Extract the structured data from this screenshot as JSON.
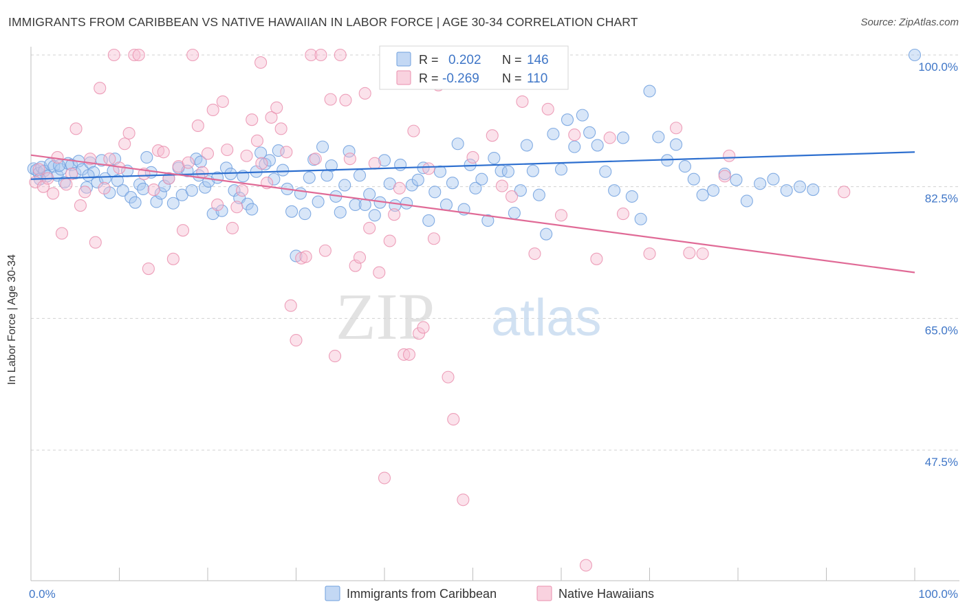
{
  "title": "IMMIGRANTS FROM CARIBBEAN VS NATIVE HAWAIIAN IN LABOR FORCE | AGE 30-34 CORRELATION CHART",
  "source": "Source: ZipAtlas.com",
  "colors": {
    "blue_fill": "#a9c8f0",
    "blue_stroke": "#6f9fde",
    "blue_line": "#2d6fcf",
    "pink_fill": "#f6bfd2",
    "pink_stroke": "#ea8fae",
    "pink_line": "#e06a96",
    "axis_text": "#3f76c7",
    "grid": "#d0d0d0"
  },
  "legend_stats": [
    {
      "r_label": "R =",
      "r_value": "0.202",
      "n_label": "N =",
      "n_value": "146"
    },
    {
      "r_label": "R =",
      "r_value": "-0.269",
      "n_label": "N =",
      "n_value": "110"
    }
  ],
  "watermark": {
    "zip": "ZIP",
    "atlas": "atlas"
  },
  "chart_data": {
    "type": "scatter",
    "title": "IMMIGRANTS FROM CARIBBEAN VS NATIVE HAWAIIAN IN LABOR FORCE | AGE 30-34 CORRELATION CHART",
    "xlabel": "",
    "ylabel": "In Labor Force | Age 30-34",
    "xlim": [
      0,
      100
    ],
    "ylim": [
      30,
      102
    ],
    "x_tick_labels": [
      "0.0%",
      "100.0%"
    ],
    "y_ticks": [
      47.5,
      65.0,
      82.5,
      100.0
    ],
    "y_tick_labels": [
      "47.5%",
      "65.0%",
      "82.5%",
      "100.0%"
    ],
    "grid": true,
    "legend_position": "bottom-center",
    "series": [
      {
        "name": "Immigrants from Caribbean",
        "color": "#a9c8f0",
        "R": 0.202,
        "N": 146,
        "trend": {
          "x": [
            0,
            100
          ],
          "y": [
            83.5,
            87.1
          ]
        },
        "points": [
          [
            0.3,
            84.9
          ],
          [
            0.6,
            84.7
          ],
          [
            0.9,
            84.3
          ],
          [
            1.2,
            85.1
          ],
          [
            1.5,
            84.6
          ],
          [
            1.8,
            83.9
          ],
          [
            2.2,
            85.5
          ],
          [
            2.6,
            85.2
          ],
          [
            3.0,
            84.0
          ],
          [
            3.4,
            84.8
          ],
          [
            3.8,
            83.1
          ],
          [
            4.2,
            85.6
          ],
          [
            4.6,
            85.4
          ],
          [
            5.0,
            84.3
          ],
          [
            5.4,
            85.9
          ],
          [
            5.8,
            84.8
          ],
          [
            6.3,
            82.4
          ],
          [
            6.7,
            85.7
          ],
          [
            7.1,
            84.4
          ],
          [
            7.5,
            83.1
          ],
          [
            8.0,
            86.0
          ],
          [
            8.4,
            83.6
          ],
          [
            8.9,
            81.7
          ],
          [
            9.3,
            84.6
          ],
          [
            9.8,
            83.3
          ],
          [
            10.4,
            82.0
          ],
          [
            10.9,
            84.6
          ],
          [
            11.3,
            81.1
          ],
          [
            11.8,
            80.4
          ],
          [
            12.3,
            82.8
          ],
          [
            12.7,
            82.2
          ],
          [
            13.1,
            86.4
          ],
          [
            13.6,
            84.4
          ],
          [
            14.2,
            80.5
          ],
          [
            14.7,
            81.6
          ],
          [
            15.1,
            82.6
          ],
          [
            15.6,
            83.6
          ],
          [
            16.1,
            80.3
          ],
          [
            16.7,
            85.0
          ],
          [
            17.1,
            81.4
          ],
          [
            17.7,
            84.6
          ],
          [
            18.2,
            82.0
          ],
          [
            18.7,
            86.2
          ],
          [
            19.2,
            85.8
          ],
          [
            19.7,
            82.4
          ],
          [
            20.1,
            83.2
          ],
          [
            20.6,
            78.9
          ],
          [
            21.1,
            83.7
          ],
          [
            21.6,
            79.3
          ],
          [
            22.1,
            85.0
          ],
          [
            22.6,
            84.2
          ],
          [
            23.0,
            82.0
          ],
          [
            23.6,
            81.0
          ],
          [
            24.0,
            83.9
          ],
          [
            24.5,
            80.2
          ],
          [
            25.0,
            79.5
          ],
          [
            25.5,
            84.5
          ],
          [
            26.0,
            87.0
          ],
          [
            26.5,
            85.5
          ],
          [
            27.0,
            86.0
          ],
          [
            27.5,
            83.5
          ],
          [
            28.0,
            87.3
          ],
          [
            28.5,
            84.7
          ],
          [
            29.0,
            82.2
          ],
          [
            29.5,
            79.2
          ],
          [
            30.0,
            73.3
          ],
          [
            30.5,
            81.6
          ],
          [
            31.0,
            78.9
          ],
          [
            31.5,
            83.7
          ],
          [
            32.0,
            86.1
          ],
          [
            32.5,
            80.5
          ],
          [
            33.0,
            87.8
          ],
          [
            33.5,
            84.0
          ],
          [
            34.0,
            85.3
          ],
          [
            34.5,
            81.2
          ],
          [
            35.0,
            79.1
          ],
          [
            35.5,
            82.7
          ],
          [
            36.0,
            87.2
          ],
          [
            36.7,
            80.1
          ],
          [
            37.2,
            84.0
          ],
          [
            37.8,
            80.1
          ],
          [
            38.3,
            81.5
          ],
          [
            38.9,
            78.7
          ],
          [
            39.5,
            80.4
          ],
          [
            40.0,
            86.0
          ],
          [
            40.6,
            82.9
          ],
          [
            41.2,
            80.0
          ],
          [
            41.8,
            85.4
          ],
          [
            42.5,
            80.3
          ],
          [
            43.1,
            82.7
          ],
          [
            43.8,
            83.4
          ],
          [
            44.4,
            85.0
          ],
          [
            45.0,
            78.0
          ],
          [
            45.7,
            81.8
          ],
          [
            46.3,
            84.5
          ],
          [
            47.0,
            80.1
          ],
          [
            47.7,
            83.0
          ],
          [
            48.3,
            88.2
          ],
          [
            49.0,
            79.5
          ],
          [
            49.7,
            85.4
          ],
          [
            50.3,
            82.3
          ],
          [
            51.0,
            83.5
          ],
          [
            51.7,
            78.0
          ],
          [
            52.4,
            86.3
          ],
          [
            53.2,
            84.6
          ],
          [
            54.0,
            84.5
          ],
          [
            54.7,
            79.0
          ],
          [
            55.4,
            82.0
          ],
          [
            56.1,
            88.0
          ],
          [
            56.8,
            84.6
          ],
          [
            57.5,
            81.4
          ],
          [
            58.3,
            76.2
          ],
          [
            59.1,
            89.5
          ],
          [
            60.0,
            84.8
          ],
          [
            60.7,
            91.4
          ],
          [
            61.5,
            87.8
          ],
          [
            62.4,
            92.0
          ],
          [
            63.2,
            89.7
          ],
          [
            64.1,
            88.0
          ],
          [
            65.0,
            84.5
          ],
          [
            66.0,
            82.0
          ],
          [
            67.0,
            89.0
          ],
          [
            68.0,
            81.2
          ],
          [
            69.0,
            78.2
          ],
          [
            70.0,
            95.2
          ],
          [
            71.0,
            89.1
          ],
          [
            72.0,
            86.0
          ],
          [
            73.0,
            88.1
          ],
          [
            74.0,
            85.2
          ],
          [
            75.0,
            83.5
          ],
          [
            76.0,
            81.4
          ],
          [
            77.2,
            82.0
          ],
          [
            78.5,
            84.2
          ],
          [
            79.8,
            83.4
          ],
          [
            81.0,
            80.6
          ],
          [
            82.5,
            82.9
          ],
          [
            84.0,
            83.5
          ],
          [
            85.5,
            82.0
          ],
          [
            87.0,
            82.5
          ],
          [
            88.5,
            82.1
          ],
          [
            1.0,
            83.5
          ],
          [
            3.2,
            85.3
          ],
          [
            6.5,
            84.0
          ],
          [
            9.5,
            86.2
          ],
          [
            19.0,
            84.0
          ],
          [
            100.0,
            100.0
          ]
        ]
      },
      {
        "name": "Native Hawaiians",
        "color": "#f6bfd2",
        "R": -0.269,
        "N": 110,
        "trend": {
          "x": [
            0,
            100
          ],
          "y": [
            86.7,
            71.1
          ]
        },
        "points": [
          [
            0.5,
            83.1
          ],
          [
            0.9,
            84.8
          ],
          [
            1.4,
            82.5
          ],
          [
            1.9,
            83.6
          ],
          [
            2.5,
            81.6
          ],
          [
            3.0,
            86.4
          ],
          [
            3.5,
            76.3
          ],
          [
            4.0,
            82.8
          ],
          [
            4.6,
            84.2
          ],
          [
            5.1,
            90.2
          ],
          [
            5.6,
            80.0
          ],
          [
            6.1,
            81.8
          ],
          [
            6.7,
            86.2
          ],
          [
            7.3,
            75.1
          ],
          [
            7.8,
            95.6
          ],
          [
            8.3,
            82.3
          ],
          [
            8.9,
            86.2
          ],
          [
            9.4,
            100.0
          ],
          [
            10.0,
            85.0
          ],
          [
            10.6,
            88.2
          ],
          [
            11.1,
            89.6
          ],
          [
            11.7,
            100.0
          ],
          [
            12.2,
            100.0
          ],
          [
            12.8,
            84.2
          ],
          [
            13.3,
            71.6
          ],
          [
            13.9,
            82.1
          ],
          [
            14.4,
            87.3
          ],
          [
            15.0,
            87.1
          ],
          [
            15.6,
            83.6
          ],
          [
            16.1,
            72.9
          ],
          [
            16.7,
            85.2
          ],
          [
            17.2,
            76.7
          ],
          [
            17.8,
            85.7
          ],
          [
            18.3,
            100.0
          ],
          [
            18.9,
            90.6
          ],
          [
            19.4,
            84.4
          ],
          [
            20.0,
            86.9
          ],
          [
            20.6,
            92.7
          ],
          [
            21.1,
            80.1
          ],
          [
            21.7,
            93.8
          ],
          [
            22.2,
            87.4
          ],
          [
            22.8,
            77.0
          ],
          [
            23.3,
            79.8
          ],
          [
            23.9,
            82.0
          ],
          [
            24.4,
            86.6
          ],
          [
            25.0,
            91.4
          ],
          [
            25.6,
            88.6
          ],
          [
            26.1,
            85.6
          ],
          [
            26.7,
            83.0
          ],
          [
            27.2,
            91.7
          ],
          [
            27.8,
            93.0
          ],
          [
            28.3,
            90.2
          ],
          [
            28.9,
            87.1
          ],
          [
            29.4,
            66.7
          ],
          [
            30.0,
            62.1
          ],
          [
            30.6,
            73.0
          ],
          [
            31.1,
            73.2
          ],
          [
            31.7,
            100.0
          ],
          [
            32.2,
            86.2
          ],
          [
            32.8,
            100.0
          ],
          [
            33.3,
            74.0
          ],
          [
            33.9,
            94.1
          ],
          [
            34.4,
            60.0
          ],
          [
            35.0,
            100.0
          ],
          [
            35.6,
            94.0
          ],
          [
            36.1,
            86.2
          ],
          [
            36.7,
            72.0
          ],
          [
            37.2,
            73.1
          ],
          [
            37.8,
            94.9
          ],
          [
            38.3,
            77.0
          ],
          [
            38.9,
            85.6
          ],
          [
            39.4,
            71.1
          ],
          [
            40.0,
            43.8
          ],
          [
            40.6,
            75.3
          ],
          [
            41.1,
            78.8
          ],
          [
            41.7,
            82.3
          ],
          [
            42.2,
            60.2
          ],
          [
            42.8,
            60.2
          ],
          [
            43.3,
            89.9
          ],
          [
            43.9,
            63.0
          ],
          [
            44.4,
            63.8
          ],
          [
            45.0,
            84.9
          ],
          [
            45.6,
            75.6
          ],
          [
            46.1,
            96.0
          ],
          [
            46.7,
            100.0
          ],
          [
            47.2,
            57.2
          ],
          [
            47.8,
            51.6
          ],
          [
            48.9,
            40.9
          ],
          [
            50.0,
            86.4
          ],
          [
            51.1,
            100.0
          ],
          [
            52.2,
            89.3
          ],
          [
            53.3,
            82.6
          ],
          [
            54.4,
            81.2
          ],
          [
            55.6,
            93.8
          ],
          [
            57.0,
            73.6
          ],
          [
            58.5,
            92.8
          ],
          [
            60.0,
            78.7
          ],
          [
            61.5,
            89.4
          ],
          [
            62.8,
            32.2
          ],
          [
            64.0,
            72.9
          ],
          [
            65.5,
            89.0
          ],
          [
            67.0,
            78.9
          ],
          [
            70.0,
            73.6
          ],
          [
            73.0,
            90.3
          ],
          [
            76.0,
            73.6
          ],
          [
            78.5,
            83.9
          ],
          [
            79.0,
            86.6
          ],
          [
            92.0,
            81.8
          ],
          [
            26.0,
            99.0
          ],
          [
            74.5,
            73.7
          ]
        ]
      }
    ]
  }
}
